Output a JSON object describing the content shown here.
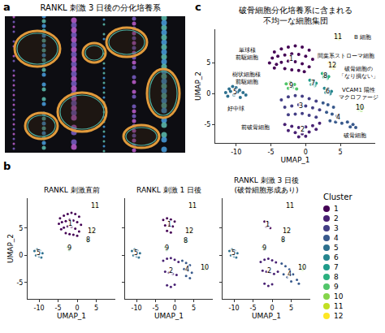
{
  "chart_data": [
    {
      "letter": "a",
      "type": "image",
      "title": "RANKL 刺激 3 日後の分化培養系"
    },
    {
      "letter": "b",
      "type": "scatter",
      "x_label": "UMAP_1",
      "y_label": "UMAP_2",
      "xlim": [
        -13,
        10
      ],
      "ylim": [
        -8,
        10.5
      ],
      "xticks": [
        -10,
        -5,
        0,
        5
      ],
      "yticks": [
        -5,
        0,
        5
      ],
      "grid": false,
      "panels": [
        {
          "title": "RANKL 刺激直前",
          "series": [
            {
              "name": "1",
              "x": [
                -4.5,
                -3.5,
                -2.5,
                -1.5,
                -0.5,
                0.5,
                -4.8,
                -4,
                -3,
                -2,
                -1,
                0,
                1,
                -4.2,
                -3.5,
                -2.5,
                -1.5,
                -0.5,
                0.5,
                -3,
                -2,
                -1,
                0
              ],
              "y": [
                6.8,
                7.3,
                7.6,
                7.8,
                7.6,
                7.1,
                5.8,
                6.1,
                6.3,
                6.5,
                6.4,
                6.1,
                5.6,
                4.8,
                5.1,
                5.3,
                5.2,
                4.9,
                4.4,
                4.1,
                3.9,
                3.8,
                3.6
              ]
            },
            {
              "name": "5",
              "x": [
                -11.2,
                -10.5,
                -9.8,
                -9.1,
                -10.8,
                -10,
                -9.4
              ],
              "y": [
                0.8,
                1.1,
                0.9,
                0.4,
                0,
                -0.2,
                -0.4
              ]
            },
            {
              "name": "8",
              "x": [
                2.6,
                3,
                2.8
              ],
              "y": [
                3,
                2.8,
                2.5
              ]
            },
            {
              "name": "9",
              "x": [
                -2.4,
                -1.8,
                -2.1
              ],
              "y": [
                1.5,
                1.4,
                0.9
              ]
            },
            {
              "name": "11",
              "x": [
                4.4,
                4.8,
                4.6
              ],
              "y": [
                9.3,
                9.1,
                8.9
              ]
            },
            {
              "name": "12",
              "x": [
                3.6,
                4,
                3.8
              ],
              "y": [
                4.8,
                4.5,
                4.2
              ]
            }
          ]
        },
        {
          "title": "RANKL 刺激 1 日後",
          "tick_labels": "x",
          "series": [
            {
              "name": "1",
              "x": [
                -3,
                -2,
                -1,
                0,
                -2.5,
                -1.5,
                -0.5,
                -2,
                -1
              ],
              "y": [
                6.5,
                6.8,
                6.6,
                6.2,
                5.5,
                5.6,
                5.3,
                4.5,
                4.2
              ]
            },
            {
              "name": "2",
              "x": [
                -3,
                -2,
                -1,
                0,
                1,
                -2.5,
                -1.5,
                -0.5,
                0.5,
                -2,
                -1,
                0
              ],
              "y": [
                -1,
                -0.6,
                -0.5,
                -0.8,
                -1.2,
                -3,
                -3.2,
                -3.4,
                -3.6,
                -5.5,
                -5.8,
                -5.4
              ]
            },
            {
              "name": "4",
              "x": [
                2,
                3,
                4,
                2.5,
                3.5,
                4.5,
                3,
                4
              ],
              "y": [
                -1,
                -1.4,
                -1.8,
                -2.5,
                -2.9,
                -3.2,
                -3.8,
                -4.2
              ]
            },
            {
              "name": "5",
              "x": [
                -11.2,
                -10.5,
                -9.8,
                -9.1,
                -10.8,
                -10,
                -9.4
              ],
              "y": [
                0.8,
                1.1,
                0.9,
                0.4,
                0,
                -0.2,
                -0.4
              ]
            },
            {
              "name": "8",
              "x": [
                2.6,
                3,
                2.8,
                3.2
              ],
              "y": [
                3,
                2.8,
                2.5,
                2.6
              ]
            },
            {
              "name": "9",
              "x": [
                -2.4,
                -1.8,
                -2.1
              ],
              "y": [
                1.5,
                1.4,
                0.9
              ]
            },
            {
              "name": "10",
              "x": [
                7.6,
                8,
                7.8
              ],
              "y": [
                -2,
                -2.2,
                -2.6
              ]
            },
            {
              "name": "11",
              "x": [
                4.4,
                4.8,
                4.6
              ],
              "y": [
                9.3,
                9.1,
                8.9
              ]
            },
            {
              "name": "12",
              "x": [
                3.6,
                4,
                3.8
              ],
              "y": [
                4.8,
                4.5,
                4.2
              ]
            }
          ]
        },
        {
          "title": "RANKL 刺激 3 日後\n(破骨細胞形成あり)",
          "tick_labels": "x",
          "series": [
            {
              "name": "1",
              "x": [
                -2,
                -1,
                -1.5,
                -0.5
              ],
              "y": [
                6.2,
                6,
                5.2,
                5
              ]
            },
            {
              "name": "2",
              "x": [
                -3,
                -2,
                -1,
                0,
                1,
                -2.5,
                -1.5,
                -0.5,
                0.5,
                1.5,
                -2,
                -1,
                0
              ],
              "y": [
                -1.2,
                -0.8,
                -0.6,
                -0.9,
                -1.3,
                -2.8,
                -3,
                -3.2,
                -3.4,
                -3,
                -5.2,
                -5.6,
                -5.3
              ]
            },
            {
              "name": "4",
              "x": [
                2.5,
                3.5,
                4.5,
                5.5,
                6.5,
                7,
                3,
                4,
                5
              ],
              "y": [
                -1.5,
                -2,
                -2.6,
                -3.5,
                -4.5,
                -5.2,
                -3.5,
                -4,
                -4.8
              ]
            },
            {
              "name": "5",
              "x": [
                -11.2,
                -10.5,
                -9.8,
                -9.1,
                -10.8,
                -10,
                -9.4
              ],
              "y": [
                0.8,
                1.1,
                0.9,
                0.4,
                0,
                -0.2,
                -0.4
              ]
            },
            {
              "name": "8",
              "x": [
                2.6,
                3,
                2.8
              ],
              "y": [
                3,
                2.8,
                2.5
              ]
            },
            {
              "name": "9",
              "x": [
                -2.4,
                -1.8
              ],
              "y": [
                1.5,
                1.1
              ]
            },
            {
              "name": "10",
              "x": [
                7.4,
                7.8,
                8.2,
                7.6,
                8
              ],
              "y": [
                -1.9,
                -2,
                -2.3,
                -2.6,
                -2.7
              ]
            },
            {
              "name": "11",
              "x": [
                4.4,
                4.8,
                4.6
              ],
              "y": [
                9.3,
                9.1,
                8.9
              ]
            },
            {
              "name": "12",
              "x": [
                3.6,
                4,
                3.8
              ],
              "y": [
                4.8,
                4.5,
                4.2
              ]
            }
          ]
        }
      ]
    },
    {
      "letter": "c",
      "type": "scatter",
      "title": "破骨細胞分化培養系に含まれる\n不均一な細胞集団",
      "x_label": "UMAP_1",
      "y_label": "UMAP_2",
      "xlim": [
        -13,
        10
      ],
      "ylim": [
        -8,
        10.5
      ],
      "xticks": [
        -10,
        -5,
        0,
        5
      ],
      "yticks": [
        -5,
        0,
        5
      ],
      "grid": false,
      "series": [
        {
          "name": "1",
          "x": [
            -4.5,
            -3.5,
            -2.5,
            -1.5,
            -0.5,
            0.5,
            -4.8,
            -4,
            -3,
            -2,
            -1,
            0,
            1,
            -4.2,
            -3.5,
            -2.5,
            -1.5,
            -0.5,
            0.5,
            -3,
            -2,
            -1,
            -0.2,
            -4.5,
            -5.2
          ],
          "y": [
            6.8,
            7.3,
            7.6,
            7.8,
            7.6,
            7.1,
            5.8,
            6.1,
            6.3,
            6.5,
            6.4,
            6.1,
            5.6,
            4.8,
            5.1,
            5.3,
            5.2,
            4.9,
            4.4,
            4.1,
            3.9,
            3.8,
            3.6,
            4.2,
            5
          ]
        },
        {
          "name": "2",
          "x": [
            -3,
            -2,
            -1,
            0,
            1,
            2,
            -2.5,
            -1.5,
            -0.5,
            0.5,
            1.5,
            -1,
            0
          ],
          "y": [
            -5,
            -5.3,
            -5.5,
            -5.4,
            -5.2,
            -4.8,
            -6,
            -6.3,
            -6.5,
            -6.2,
            -5.8,
            -7,
            -6.9
          ]
        },
        {
          "name": "3",
          "x": [
            -3.5,
            -2.5,
            -1.5,
            -0.5,
            0.5,
            1.5,
            -3,
            -2,
            -1,
            0,
            1,
            2,
            -2.5,
            -1.5,
            -0.5,
            0.5,
            1.5
          ],
          "y": [
            -1,
            -0.5,
            -0.3,
            -0.4,
            -0.8,
            -1.2,
            -2.2,
            -2,
            -1.8,
            -2,
            -2.3,
            -2.6,
            -3.4,
            -3.3,
            -3.2,
            -3.5,
            -3.8
          ]
        },
        {
          "name": "4",
          "x": [
            2.5,
            3.2,
            4,
            3,
            3.8,
            4.5,
            3.5,
            4.3,
            5.2,
            6,
            6.8,
            7.2,
            6.4
          ],
          "y": [
            -1.5,
            -1.8,
            -2.2,
            -3,
            -3.3,
            -3.6,
            -4.4,
            -4.6,
            -4.8,
            -4.6,
            -5,
            -5.5,
            -5.4
          ]
        },
        {
          "name": "5",
          "x": [
            -11.5,
            -11,
            -10.5,
            -10,
            -9.5,
            -9,
            -8.6,
            -11.2,
            -10.3,
            -9.4,
            -10.8,
            -9.8
          ],
          "y": [
            0.2,
            0.8,
            1.2,
            1,
            0.6,
            0.2,
            -0.2,
            -0.4,
            -0.2,
            -0.6,
            0.4,
            0.3
          ]
        },
        {
          "name": "6",
          "x": [
            2.7,
            3.2,
            3.7,
            2.9,
            3.5
          ],
          "y": [
            0.9,
            0.7,
            0.4,
            0.2,
            0
          ]
        },
        {
          "name": "7",
          "x": [
            0.6,
            1.1,
            1.5,
            0.8,
            1.3
          ],
          "y": [
            2.2,
            2,
            1.7,
            1.5,
            1.3
          ]
        },
        {
          "name": "8",
          "x": [
            2.4,
            2.9,
            3.3,
            2.6,
            3.1
          ],
          "y": [
            3.3,
            3.1,
            2.8,
            2.7,
            2.5
          ]
        },
        {
          "name": "9",
          "x": [
            -2.8,
            -2.2,
            -1.6,
            -2.5,
            -1.9,
            -1.3
          ],
          "y": [
            1.6,
            1.8,
            1.5,
            0.9,
            1,
            0.8
          ]
        },
        {
          "name": "10",
          "x": [
            7.4,
            7.8,
            8.2,
            7.6,
            8
          ],
          "y": [
            -1.9,
            -2,
            -2.3,
            -2.6,
            -2.7
          ]
        },
        {
          "name": "11",
          "x": [
            4.3,
            4.6,
            4.9,
            4.5,
            4.8
          ],
          "y": [
            9.4,
            9.5,
            9.3,
            9,
            8.9
          ]
        },
        {
          "name": "12",
          "x": [
            3.4,
            3.8,
            4.2,
            3.6,
            4
          ],
          "y": [
            5,
            4.8,
            4.6,
            4.3,
            4.2
          ]
        }
      ],
      "annotations": [
        {
          "text": "単球様\n前駆細胞",
          "x": -8.5,
          "y": 6.5
        },
        {
          "text": "樹状細胞様\n前駆細胞",
          "x": -8.5,
          "y": 2.5
        },
        {
          "text": "好中球",
          "x": -10,
          "y": -2.5
        },
        {
          "text": "前破骨細胞",
          "x": -7.2,
          "y": -5.5
        },
        {
          "text": "B 細胞",
          "x": 8.2,
          "y": 9.2
        },
        {
          "text": "間葉系ストローマ細胞",
          "x": 5.8,
          "y": 6.2
        },
        {
          "text": "破骨細胞の\n「なり損ない」",
          "x": 7.6,
          "y": 3.4
        },
        {
          "text": "VCAM1 陽性\nマクロファージ",
          "x": 7.6,
          "y": 0
        },
        {
          "text": "破骨細胞",
          "x": 7,
          "y": -6.8
        }
      ]
    }
  ],
  "cluster_legend": {
    "title": "Cluster",
    "entries": [
      {
        "name": "1",
        "color": "#440154"
      },
      {
        "name": "2",
        "color": "#482173"
      },
      {
        "name": "3",
        "color": "#433e85"
      },
      {
        "name": "4",
        "color": "#38598c"
      },
      {
        "name": "5",
        "color": "#2d708e"
      },
      {
        "name": "6",
        "color": "#25858e"
      },
      {
        "name": "7",
        "color": "#1e9b8a"
      },
      {
        "name": "8",
        "color": "#2bb07f"
      },
      {
        "name": "9",
        "color": "#51c56a"
      },
      {
        "name": "10",
        "color": "#85d54a"
      },
      {
        "name": "11",
        "color": "#c2df23"
      },
      {
        "name": "12",
        "color": "#fde725"
      }
    ]
  }
}
